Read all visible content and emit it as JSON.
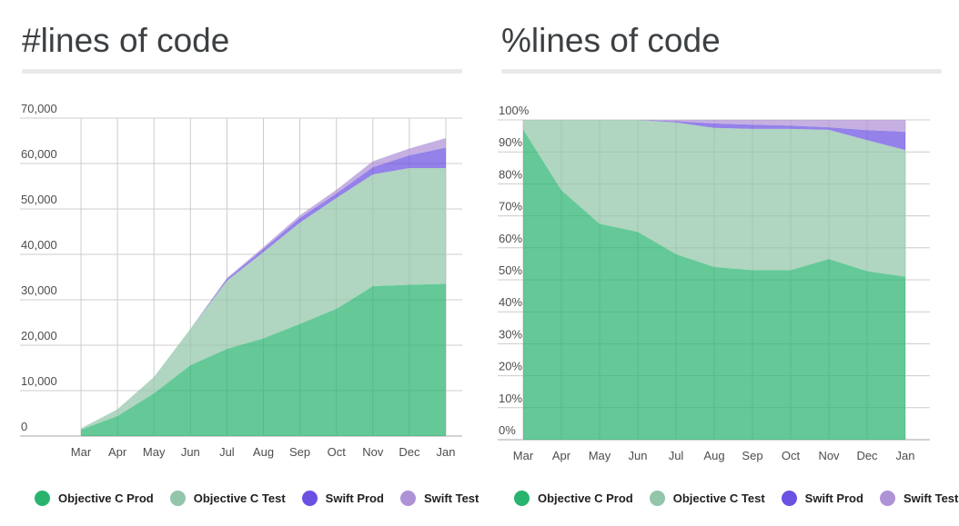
{
  "page_background": "#ffffff",
  "colors": {
    "objc_prod": "#28b46f",
    "objc_test": "#92c5a9",
    "swift_prod": "#6b50e2",
    "swift_test": "#ae92d6",
    "gridline": "#cccccc",
    "axis_baseline": "#a6a6a6",
    "axis_text": "#4d4d4d",
    "title_text": "#3c4043"
  },
  "chart_data": [
    {
      "type": "area",
      "stacked": true,
      "title": "#lines of code",
      "xlabel": "",
      "ylabel": "",
      "ylim": [
        0,
        70000
      ],
      "grid": true,
      "legend_position": "bottom",
      "categories": [
        "Mar",
        "Apr",
        "May",
        "Jun",
        "Jul",
        "Aug",
        "Sep",
        "Oct",
        "Nov",
        "Dec",
        "Jan"
      ],
      "y_tick_labels": [
        "0",
        "10,000",
        "20,000",
        "30,000",
        "40,000",
        "50,000",
        "60,000",
        "70,000"
      ],
      "series": [
        {
          "name": "Objective C Prod",
          "color": "#28b46f",
          "values": [
            1400,
            4400,
            9400,
            15600,
            19200,
            21500,
            24700,
            28000,
            33000,
            33300,
            33500
          ]
        },
        {
          "name": "Objective C Test",
          "color": "#92c5a9",
          "values": [
            300,
            1500,
            3600,
            8000,
            15000,
            19000,
            22300,
            24400,
            24600,
            25700,
            25500
          ]
        },
        {
          "name": "Swift Prod",
          "color": "#6b50e2",
          "values": [
            0,
            0,
            0,
            0,
            400,
            700,
            1000,
            1000,
            1600,
            2800,
            4500
          ]
        },
        {
          "name": "Swift Test",
          "color": "#ae92d6",
          "values": [
            0,
            0,
            0,
            0,
            200,
            400,
            600,
            800,
            1300,
            1500,
            2100
          ]
        }
      ]
    },
    {
      "type": "area",
      "stacked": true,
      "title": "%lines of code",
      "xlabel": "",
      "ylabel": "",
      "ylim": [
        0,
        100
      ],
      "grid": true,
      "legend_position": "bottom",
      "categories": [
        "Mar",
        "Apr",
        "May",
        "Jun",
        "Jul",
        "Aug",
        "Sep",
        "Oct",
        "Nov",
        "Dec",
        "Jan"
      ],
      "y_tick_labels": [
        "0%",
        "10%",
        "20%",
        "30%",
        "40%",
        "50%",
        "60%",
        "70%",
        "80%",
        "90%",
        "100%"
      ],
      "series": [
        {
          "name": "Objective C Prod",
          "color": "#28b46f",
          "values": [
            97,
            78,
            67.5,
            65,
            58,
            54,
            53,
            53,
            56.5,
            52.7,
            51
          ]
        },
        {
          "name": "Objective C Test",
          "color": "#92c5a9",
          "values": [
            3,
            22,
            32.5,
            35,
            41.2,
            43.5,
            44.2,
            44.2,
            40.4,
            41,
            39.6
          ]
        },
        {
          "name": "Swift Prod",
          "color": "#6b50e2",
          "values": [
            0,
            0,
            0,
            0,
            0.4,
            1.4,
            1.3,
            1.0,
            0.8,
            3.1,
            5.7
          ]
        },
        {
          "name": "Swift Test",
          "color": "#ae92d6",
          "values": [
            0,
            0,
            0,
            0,
            0.4,
            1.1,
            1.5,
            1.8,
            2.3,
            3.2,
            3.7
          ]
        }
      ]
    }
  ]
}
